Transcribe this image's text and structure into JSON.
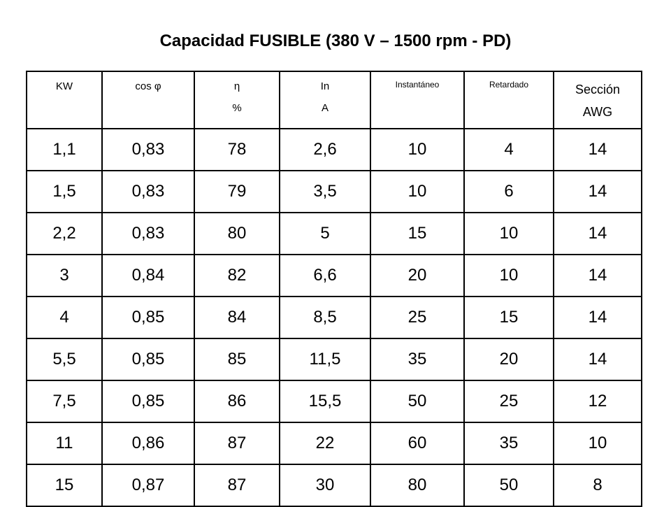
{
  "title": "Capacidad FUSIBLE (380 V – 1500 rpm - PD)",
  "table": {
    "headers": [
      {
        "lines": [
          "KW"
        ],
        "size": "normal"
      },
      {
        "lines": [
          "cos φ"
        ],
        "size": "normal"
      },
      {
        "lines": [
          "η",
          "%"
        ],
        "size": "normal"
      },
      {
        "lines": [
          "In",
          "A"
        ],
        "size": "normal"
      },
      {
        "lines": [
          "Instantáneo"
        ],
        "size": "small"
      },
      {
        "lines": [
          "Retardado"
        ],
        "size": "small"
      },
      {
        "lines": [
          "Sección",
          "AWG"
        ],
        "size": "large"
      }
    ],
    "rows": [
      [
        "1,1",
        "0,83",
        "78",
        "2,6",
        "10",
        "4",
        "14"
      ],
      [
        "1,5",
        "0,83",
        "79",
        "3,5",
        "10",
        "6",
        "14"
      ],
      [
        "2,2",
        "0,83",
        "80",
        "5",
        "15",
        "10",
        "14"
      ],
      [
        "3",
        "0,84",
        "82",
        "6,6",
        "20",
        "10",
        "14"
      ],
      [
        "4",
        "0,85",
        "84",
        "8,5",
        "25",
        "15",
        "14"
      ],
      [
        "5,5",
        "0,85",
        "85",
        "11,5",
        "35",
        "20",
        "14"
      ],
      [
        "7,5",
        "0,85",
        "86",
        "15,5",
        "50",
        "25",
        "12"
      ],
      [
        "11",
        "0,86",
        "87",
        "22",
        "60",
        "35",
        "10"
      ],
      [
        "15",
        "0,87",
        "87",
        "30",
        "80",
        "50",
        "8"
      ]
    ]
  }
}
